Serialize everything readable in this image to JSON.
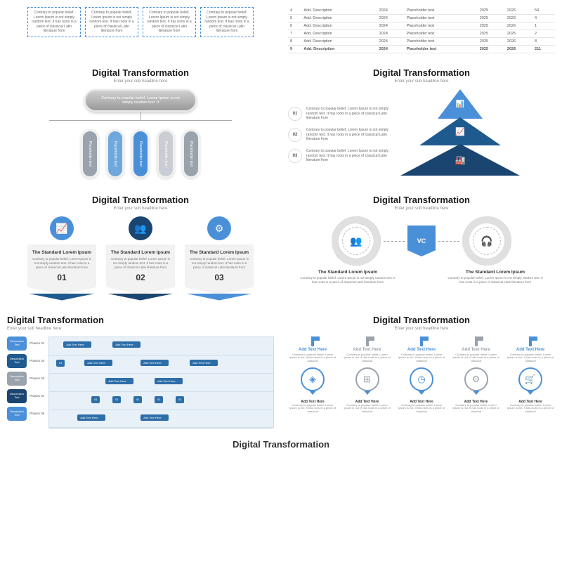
{
  "colors": {
    "blue": "#4a90d9",
    "darkblue": "#1f5a8f",
    "navy": "#1a4570",
    "gray": "#9aa3ab",
    "lightgray": "#c8ced3",
    "bg": "#f2f2f2"
  },
  "title": "Digital Transformation",
  "sub": "Enter your sub headline here",
  "card_text": "Contrary to popular belief, Lorem Ipsum is not simply random text. It has roots in a piece of classical Latin literature from",
  "table": {
    "rows": [
      [
        "4",
        "Add. Description",
        "2024",
        "Placeholder text",
        "2025",
        "2026",
        "54"
      ],
      [
        "5",
        "Add. Description",
        "2024",
        "Placeholder text",
        "2025",
        "2026",
        "4"
      ],
      [
        "6",
        "Add. Description",
        "2024",
        "Placeholder text",
        "2025",
        "2026",
        "1"
      ],
      [
        "7",
        "Add. Description",
        "2024",
        "Placeholder text",
        "2025",
        "2025",
        "2"
      ],
      [
        "8",
        "Add. Description",
        "2024",
        "Placeholder text",
        "2025",
        "2026",
        "8"
      ],
      [
        "9",
        "Add. Description",
        "2024",
        "Placeholder text",
        "2025",
        "2026",
        "211"
      ]
    ]
  },
  "org": {
    "top": "Contrary to popular belief, Lorem Ipsum is not simply random text. It",
    "children": [
      {
        "label": "Placeholder text",
        "color": "#9aa3ab"
      },
      {
        "label": "Placeholder text",
        "color": "#6fa8dc"
      },
      {
        "label": "Placeholder text",
        "color": "#4a90d9"
      },
      {
        "label": "Placeholder text",
        "color": "#c8ced3"
      },
      {
        "label": "Placeholder text",
        "color": "#9aa3ab"
      }
    ]
  },
  "pyr": {
    "items": [
      {
        "n": "01",
        "text": "Contrary to popular belief, Lorem Ipsum is not simply random text. It has roots in a piece of classical Latin literature from"
      },
      {
        "n": "02",
        "text": "Contrary to popular belief, Lorem Ipsum is not simply random text. It has roots in a piece of classical Latin literature from"
      },
      {
        "n": "03",
        "text": "Contrary to popular belief, Lorem Ipsum is not simply random text. It has roots in a piece of classical Latin literature from"
      }
    ],
    "layers": [
      {
        "color": "#4a90d9"
      },
      {
        "color": "#1f5a8f"
      },
      {
        "color": "#1a4570"
      }
    ]
  },
  "badges": [
    {
      "icon": "📈",
      "color": "#4a90d9",
      "title": "The Standard Lorem Ipsum",
      "num": "01",
      "chev": "#1f5a8f"
    },
    {
      "icon": "👥",
      "color": "#1a4570",
      "title": "The Standard Lorem Ipsum",
      "num": "02",
      "chev": "#1a4570"
    },
    {
      "icon": "⚙",
      "color": "#4a90d9",
      "title": "The Standard Lorem Ipsum",
      "num": "03",
      "chev": "#4a90d9"
    }
  ],
  "badge_text": "Contrary to popular belief, Lorem Ipsum is not simply random text. It has roots in a piece of classical Latin literature from",
  "vc": {
    "left": {
      "icon": "👥",
      "arc": "#1f5a8f",
      "title": "The Standard Lorem Ipsum"
    },
    "center": "VC",
    "right": {
      "icon": "🎧",
      "arc": "#9aa3ab",
      "title": "The Standard Lorem Ipsum"
    },
    "text": "Contrary to popular belief, Lorem Ipsum is not simply random text. It has roots in a piece of classical Latin literature from"
  },
  "flow": {
    "phases": [
      {
        "label": "Phases 01",
        "color": "#4a90d9",
        "text": "Description Text"
      },
      {
        "label": "Phases 02",
        "color": "#1f5a8f",
        "text": "Description Text"
      },
      {
        "label": "Phases 03",
        "color": "#9aa3ab",
        "text": "Description Text"
      },
      {
        "label": "Phases 04",
        "color": "#1a4570",
        "text": "Description Text"
      },
      {
        "label": "Phases 05",
        "color": "#4a90d9",
        "text": "Description Text"
      }
    ],
    "node_label": "Add Text Here",
    "small": "01"
  },
  "timeline": [
    {
      "color": "#4a90d9",
      "icon": "◈",
      "title": "Add Text Here"
    },
    {
      "color": "#9aa3ab",
      "icon": "⊞",
      "title": "Add Text Here"
    },
    {
      "color": "#4a90d9",
      "icon": "◷",
      "title": "Add Text Here"
    },
    {
      "color": "#9aa3ab",
      "icon": "⚙",
      "title": "Add Text Here"
    },
    {
      "color": "#4a90d9",
      "icon": "🛒",
      "title": "Add Text Here"
    }
  ],
  "timeline_desc": "Contrary to popular belief, Lorem Ipsum is not. It has roots in a piece of classical"
}
